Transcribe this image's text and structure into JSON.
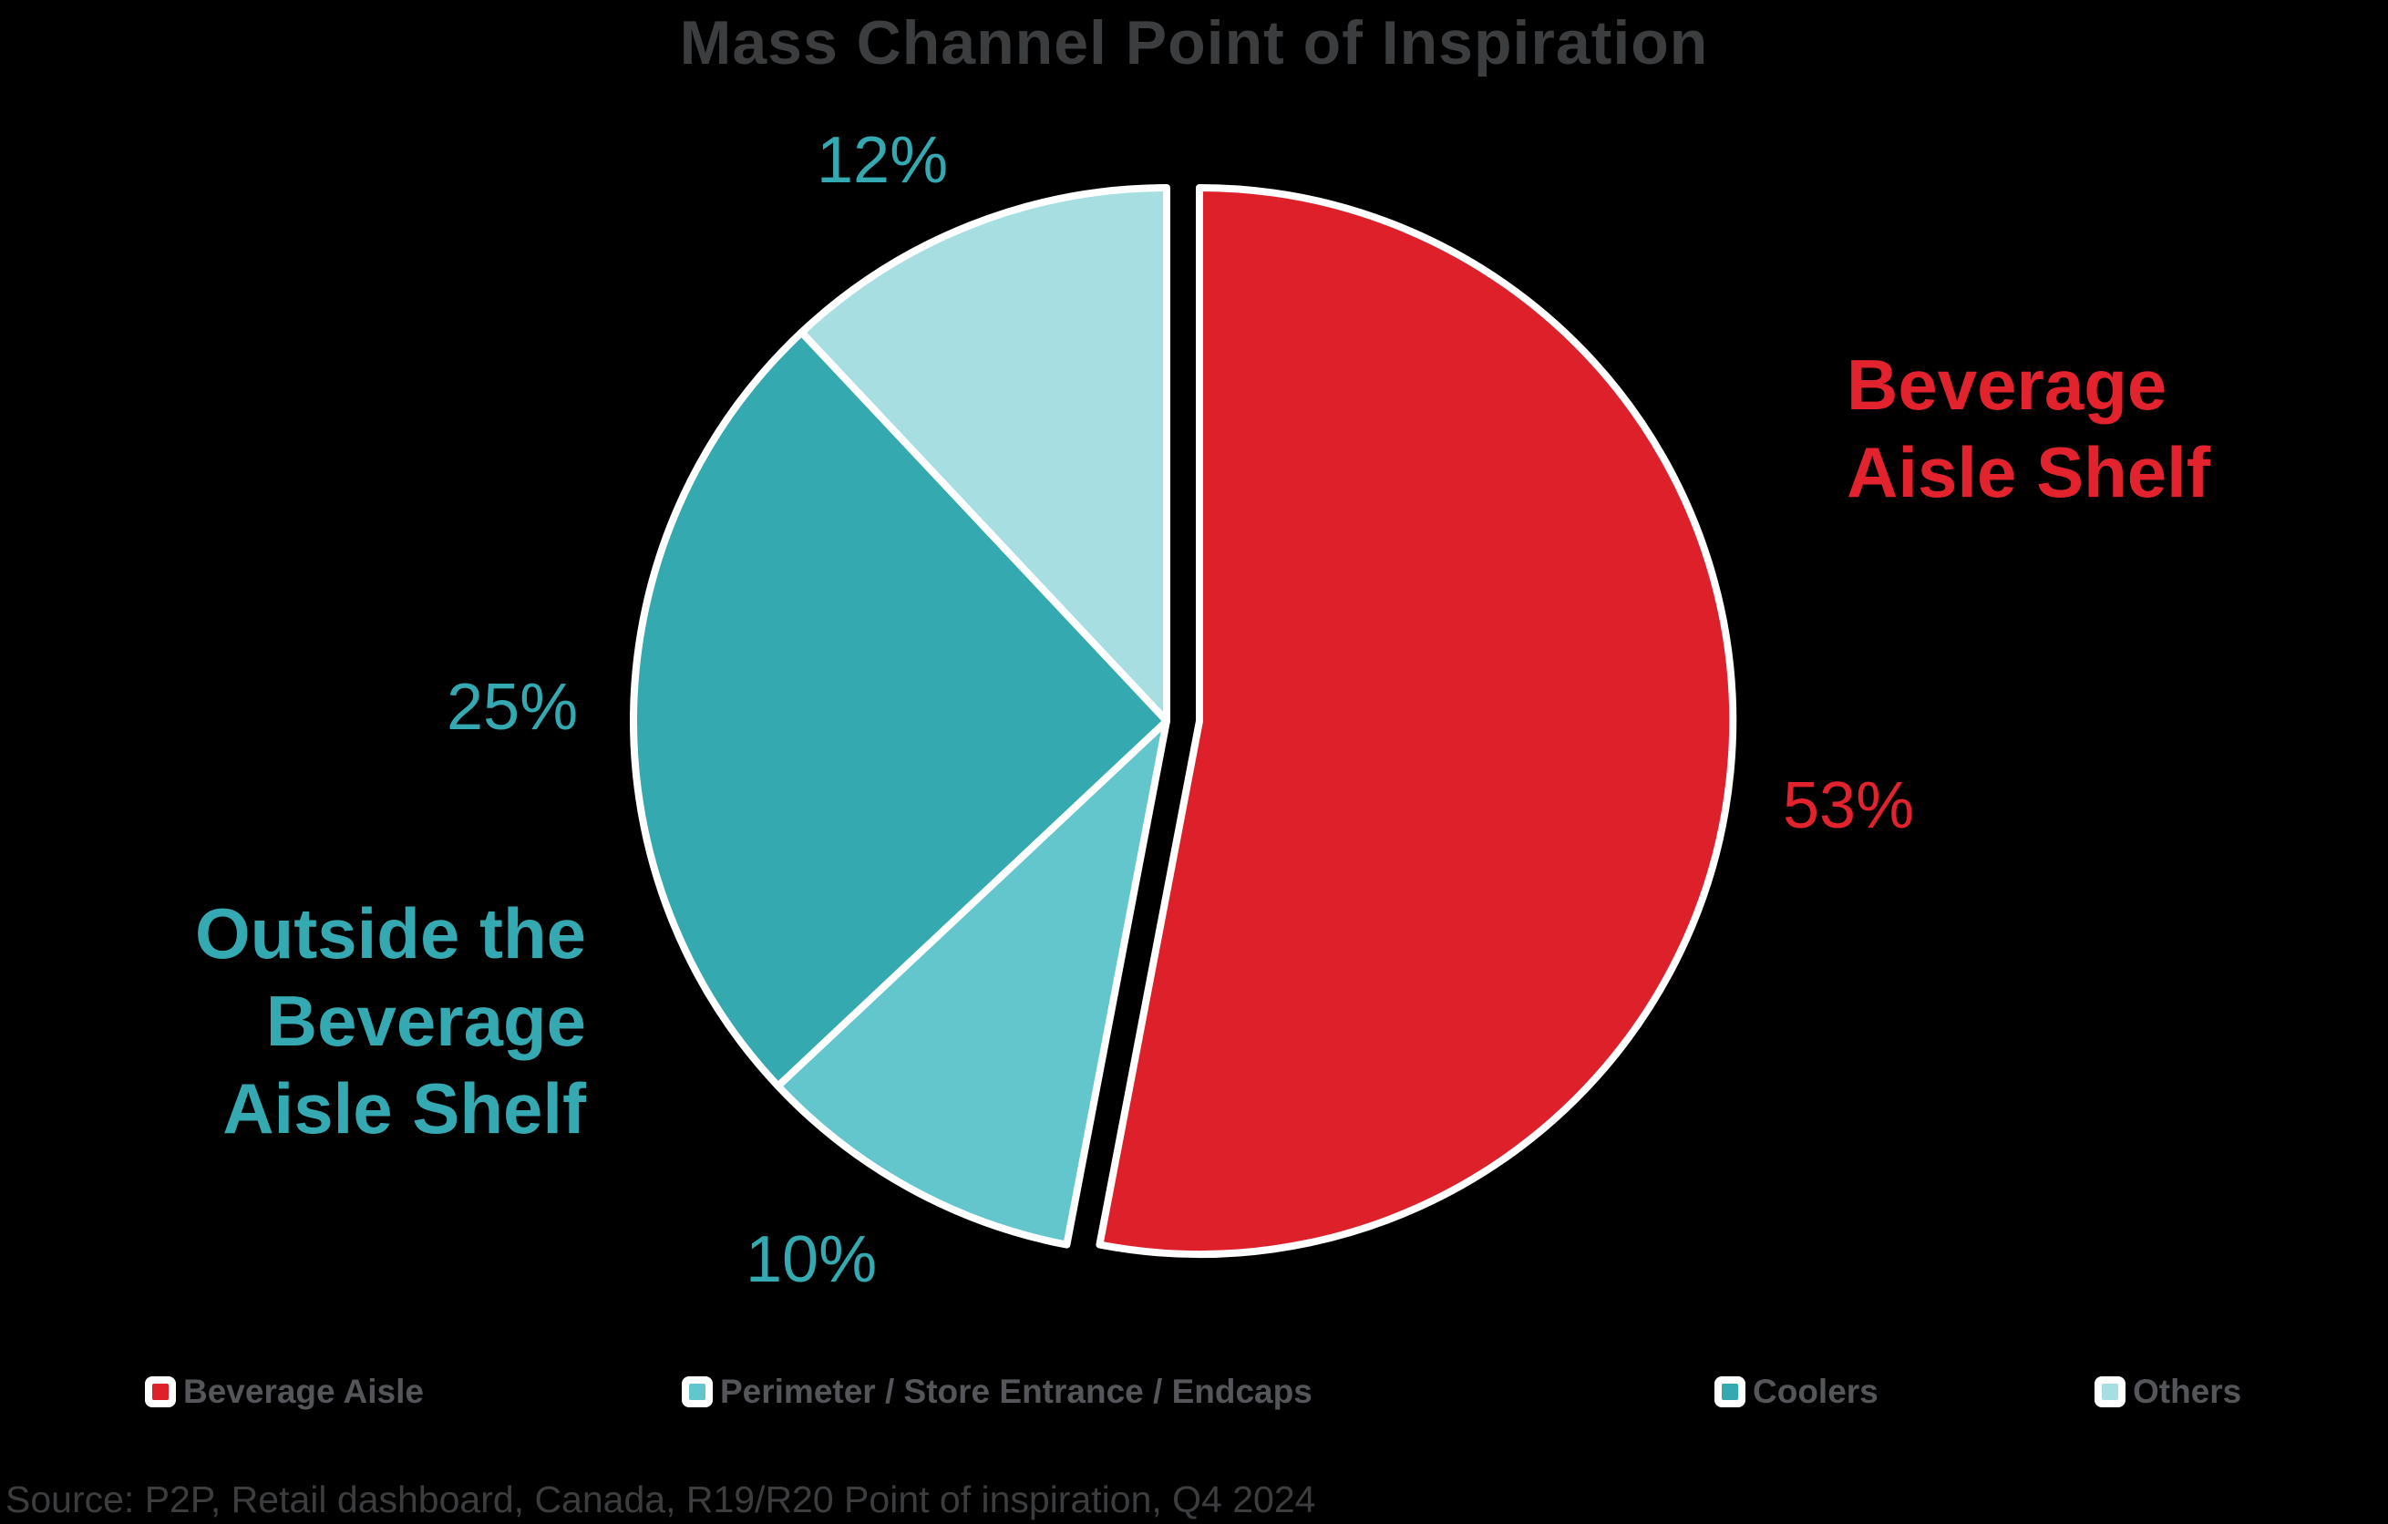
{
  "title": "Mass Channel Point of Inspiration",
  "source": "Source: P2P, Retail dashboard, Canada, R19/R20 Point of inspiration, Q4 2024",
  "colors": {
    "background": "#000000",
    "slice_border": "#FFFFFF",
    "red_text": "#E2232E",
    "teal_text": "#35A9B2",
    "title_text": "#3B3D3F",
    "legend_text": "#54565A",
    "source_text": "#3B3D3F"
  },
  "chart_data": {
    "type": "pie",
    "title": "Mass Channel Point of Inspiration",
    "total": 100,
    "start_angle_deg": 0,
    "direction": "clockwise",
    "legend_position": "bottom",
    "slices": [
      {
        "label": "Beverage Aisle",
        "value": 53,
        "pct_label": "53%",
        "color": "#DE202B",
        "exploded": true
      },
      {
        "label": "Perimeter / Store Entrance / Endcaps",
        "value": 10,
        "pct_label": "10%",
        "color": "#63C6CD",
        "exploded": false
      },
      {
        "label": "Coolers",
        "value": 25,
        "pct_label": "25%",
        "color": "#35A9B0",
        "exploded": false
      },
      {
        "label": "Others",
        "value": 12,
        "pct_label": "12%",
        "color": "#A7DEE2",
        "exploded": false
      }
    ],
    "annotations": {
      "right_label": {
        "lines": [
          "Beverage",
          "Aisle Shelf"
        ],
        "color": "#E2232E"
      },
      "left_label": {
        "lines": [
          "Outside the",
          "Beverage",
          "Aisle Shelf"
        ],
        "color": "#35A9B2"
      }
    }
  }
}
